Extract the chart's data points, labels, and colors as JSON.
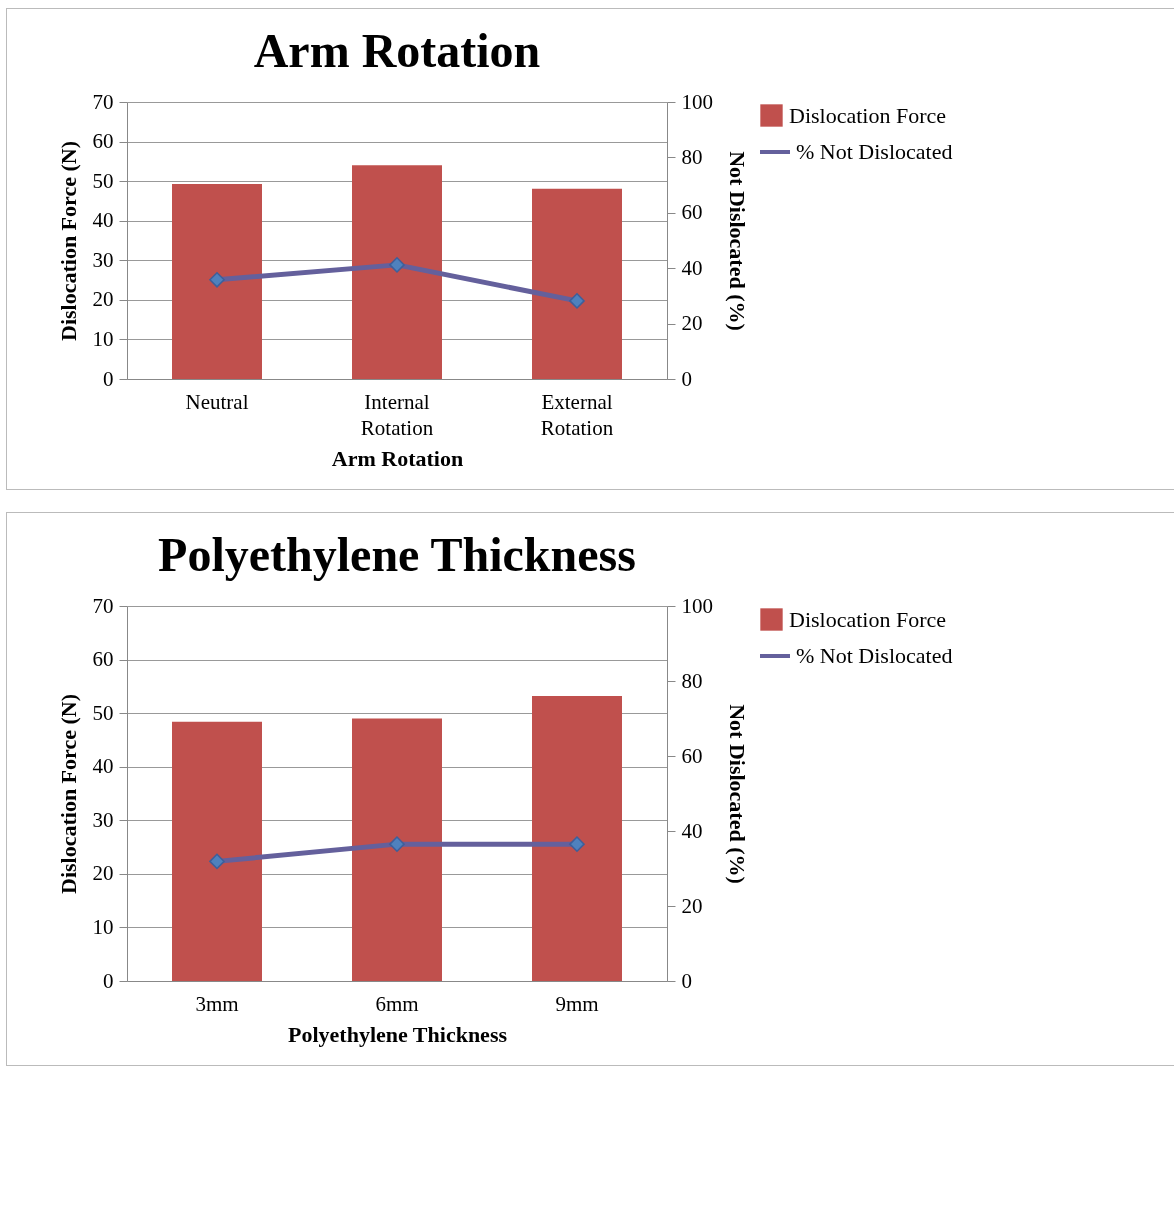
{
  "chart_data": [
    {
      "type": "bar",
      "title": "Arm Rotation",
      "xlabel": "Arm Rotation",
      "ylabel": "Dislocation Force (N)",
      "y2label": "Not Dislocated (%)",
      "categories": [
        "Neutral",
        "Internal Rotation",
        "External Rotation"
      ],
      "series": [
        {
          "name": "Dislocation Force",
          "color": "#c0504d",
          "values": [
            49.3,
            54.0,
            48.1
          ]
        },
        {
          "name": "% Not Dislocated",
          "type": "line",
          "axis": "y2",
          "color": "#64609c",
          "marker": "diamond",
          "values": [
            35.8,
            41.2,
            28.2
          ]
        }
      ],
      "ylim": [
        0,
        70
      ],
      "yticks": [
        0,
        10,
        20,
        30,
        40,
        50,
        60,
        70
      ],
      "y2lim": [
        0,
        100
      ],
      "y2ticks": [
        0,
        20,
        40,
        60,
        80,
        100
      ],
      "grid": "y",
      "legend": "right"
    },
    {
      "type": "bar",
      "title": "Polyethylene Thickness",
      "xlabel": "Polyethylene Thickness",
      "ylabel": "Dislocation Force (N)",
      "y2label": "Not Dislocated (%)",
      "categories": [
        "3mm",
        "6mm",
        "9mm"
      ],
      "series": [
        {
          "name": "Dislocation Force",
          "color": "#c0504d",
          "values": [
            48.4,
            49.0,
            53.2
          ]
        },
        {
          "name": "% Not Dislocated",
          "type": "line",
          "axis": "y2",
          "color": "#64609c",
          "marker": "diamond",
          "values": [
            31.9,
            36.5,
            36.5
          ]
        }
      ],
      "ylim": [
        0,
        70
      ],
      "yticks": [
        0,
        10,
        20,
        30,
        40,
        50,
        60,
        70
      ],
      "y2lim": [
        0,
        100
      ],
      "y2ticks": [
        0,
        20,
        40,
        60,
        80,
        100
      ],
      "grid": "y",
      "legend": "right"
    }
  ]
}
